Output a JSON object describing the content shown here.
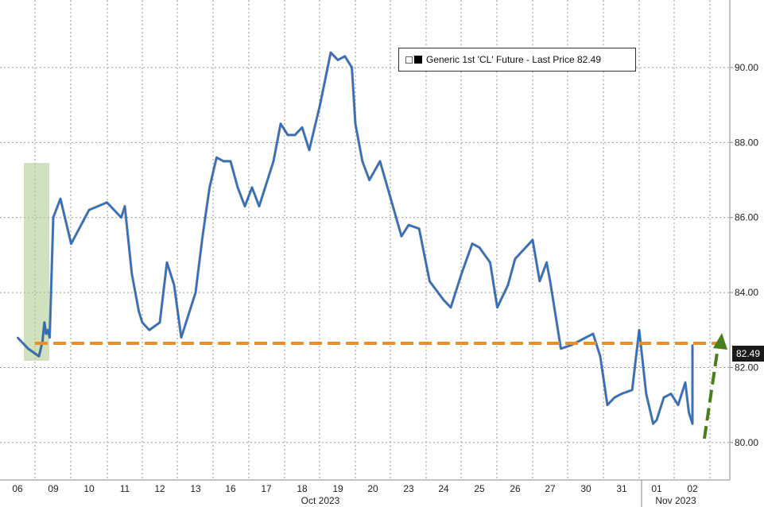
{
  "chart_data": {
    "type": "line",
    "title": "",
    "xlabel": "",
    "ylabel": "",
    "ylim": [
      79.0,
      91.8
    ],
    "yticks": [
      "80.00",
      "82.00",
      "84.00",
      "86.00",
      "88.00",
      "90.00"
    ],
    "x_tick_labels": [
      "06",
      "09",
      "10",
      "11",
      "12",
      "13",
      "16",
      "17",
      "18",
      "19",
      "20",
      "23",
      "24",
      "25",
      "26",
      "27",
      "30",
      "31",
      "01",
      "02"
    ],
    "month_labels": [
      "Oct 2023",
      "Nov 2023"
    ],
    "legend": {
      "text": "Generic 1st 'CL' Future - Last Price 82.49",
      "placement": "top-right"
    },
    "last_value_label": "82.49",
    "grid": true,
    "series": [
      {
        "name": "Generic 1st 'CL' Future - Last Price",
        "color": "#1f6fd1",
        "x": [
          0.0,
          0.3,
          0.6,
          0.7,
          0.75,
          0.8,
          0.85,
          0.9,
          1.0,
          1.2,
          1.5,
          2.0,
          2.5,
          2.9,
          3.0,
          3.2,
          3.4,
          3.5,
          3.7,
          4.0,
          4.2,
          4.4,
          4.6,
          4.8,
          5.0,
          5.2,
          5.4,
          5.6,
          5.8,
          6.0,
          6.2,
          6.4,
          6.6,
          6.8,
          7.0,
          7.2,
          7.4,
          7.6,
          7.8,
          8.0,
          8.2,
          8.5,
          8.8,
          9.0,
          9.2,
          9.4,
          9.5,
          9.7,
          9.9,
          10.2,
          10.5,
          10.8,
          11.0,
          11.3,
          11.6,
          12.0,
          12.2,
          12.3,
          12.5,
          12.8,
          13.0,
          13.3,
          13.5,
          13.8,
          14.0,
          14.2,
          14.5,
          14.7,
          14.9,
          15.0,
          15.3,
          15.6,
          16.0,
          16.2,
          16.4,
          16.6,
          16.8,
          17.0,
          17.3,
          17.5,
          17.7,
          17.9,
          18.0,
          18.2,
          18.4,
          18.6,
          18.8,
          18.9,
          19.0,
          19.1,
          19.3,
          19.4,
          19.6,
          19.8
        ],
        "values": [
          82.8,
          82.5,
          82.3,
          82.7,
          83.2,
          82.9,
          83.0,
          82.8,
          86.0,
          86.5,
          85.3,
          86.2,
          86.4,
          86.0,
          86.3,
          84.5,
          83.5,
          83.2,
          83.0,
          83.2,
          84.8,
          84.2,
          82.8,
          83.4,
          84.0,
          85.5,
          86.8,
          87.6,
          87.5,
          87.5,
          86.8,
          86.3,
          86.8,
          86.3,
          86.9,
          87.5,
          88.5,
          88.2,
          88.2,
          88.4,
          87.8,
          89.0,
          90.4,
          90.2,
          90.3,
          90.0,
          88.5,
          87.5,
          87.0,
          87.5,
          86.5,
          85.5,
          85.8,
          85.7,
          84.3,
          83.8,
          83.6,
          83.9,
          84.5,
          85.3,
          85.2,
          84.8,
          83.6,
          84.2,
          84.9,
          85.1,
          85.4,
          84.3,
          84.8,
          84.3,
          82.5,
          82.6,
          82.8,
          82.9,
          82.3,
          81.0,
          81.2,
          81.3,
          81.4,
          83.0,
          81.3,
          80.5,
          80.6,
          81.2,
          81.3,
          81.0,
          81.6,
          80.8,
          80.5,
          82.1,
          82.4,
          82.5,
          82.6,
          82.6
        ]
      }
    ]
  }
}
